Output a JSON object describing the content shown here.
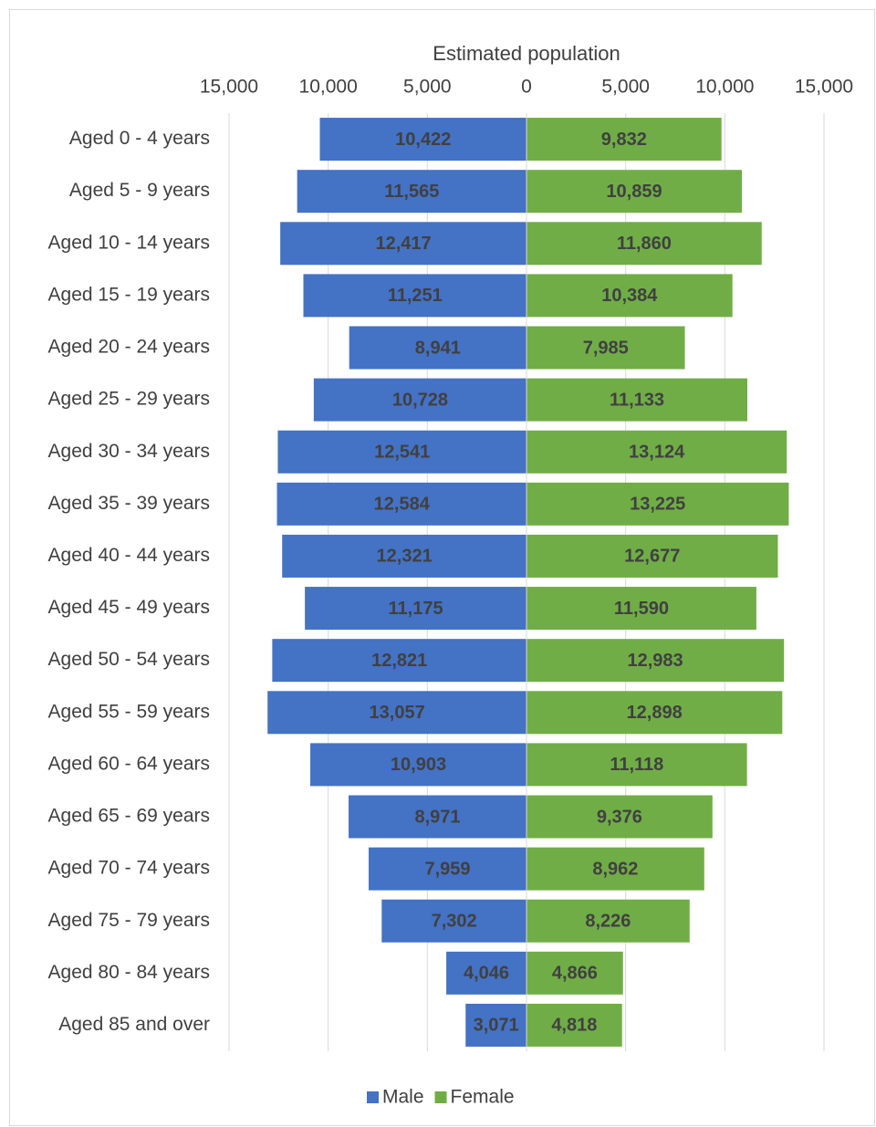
{
  "chart_data": {
    "type": "pyramid",
    "x_label": "Estimated population",
    "categories": [
      "Aged 0 - 4 years",
      "Aged 5 - 9 years",
      "Aged 10 - 14 years",
      "Aged 15 - 19 years",
      "Aged 20 - 24 years",
      "Aged 25 - 29 years",
      "Aged 30 - 34 years",
      "Aged 35 - 39 years",
      "Aged 40 - 44 years",
      "Aged 45 - 49 years",
      "Aged 50 - 54 years",
      "Aged 55 - 59 years",
      "Aged 60 - 64 years",
      "Aged 65 - 69 years",
      "Aged 70 - 74 years",
      "Aged 75 - 79 years",
      "Aged 80 - 84 years",
      "Aged 85 and over"
    ],
    "series": [
      {
        "name": "Male",
        "color": "#4472c4",
        "values": [
          -10422,
          -11565,
          -12417,
          -11251,
          -8941,
          -10728,
          -12541,
          -12584,
          -12321,
          -11175,
          -12821,
          -13057,
          -10903,
          -8971,
          -7959,
          -7302,
          -4046,
          -3071
        ],
        "value_labels": [
          "10,422",
          "11,565",
          "12,417",
          "11,251",
          "8,941",
          "10,728",
          "12,541",
          "12,584",
          "12,321",
          "11,175",
          "12,821",
          "13,057",
          "10,903",
          "8,971",
          "7,959",
          "7,302",
          "4,046",
          "3,071"
        ]
      },
      {
        "name": "Female",
        "color": "#70ad47",
        "values": [
          9832,
          10859,
          11860,
          10384,
          7985,
          11133,
          13124,
          13225,
          12677,
          11590,
          12983,
          12898,
          11118,
          9376,
          8962,
          8226,
          4866,
          4818
        ],
        "value_labels": [
          "9,832",
          "10,859",
          "11,860",
          "10,384",
          "7,985",
          "11,133",
          "13,124",
          "13,225",
          "12,677",
          "11,590",
          "12,983",
          "12,898",
          "11,118",
          "9,376",
          "8,962",
          "8,226",
          "4,866",
          "4,818"
        ]
      }
    ],
    "xlim": [
      -15000,
      15000
    ],
    "xticks": [
      {
        "value": -15000,
        "label": "15,000"
      },
      {
        "value": -10000,
        "label": "10,000"
      },
      {
        "value": -5000,
        "label": "5,000"
      },
      0,
      {
        "value": 5000,
        "label": "5,000"
      },
      {
        "value": 10000,
        "label": "10,000"
      },
      {
        "value": 15000,
        "label": "15,000"
      }
    ],
    "grid": true,
    "legend": "bottom"
  }
}
